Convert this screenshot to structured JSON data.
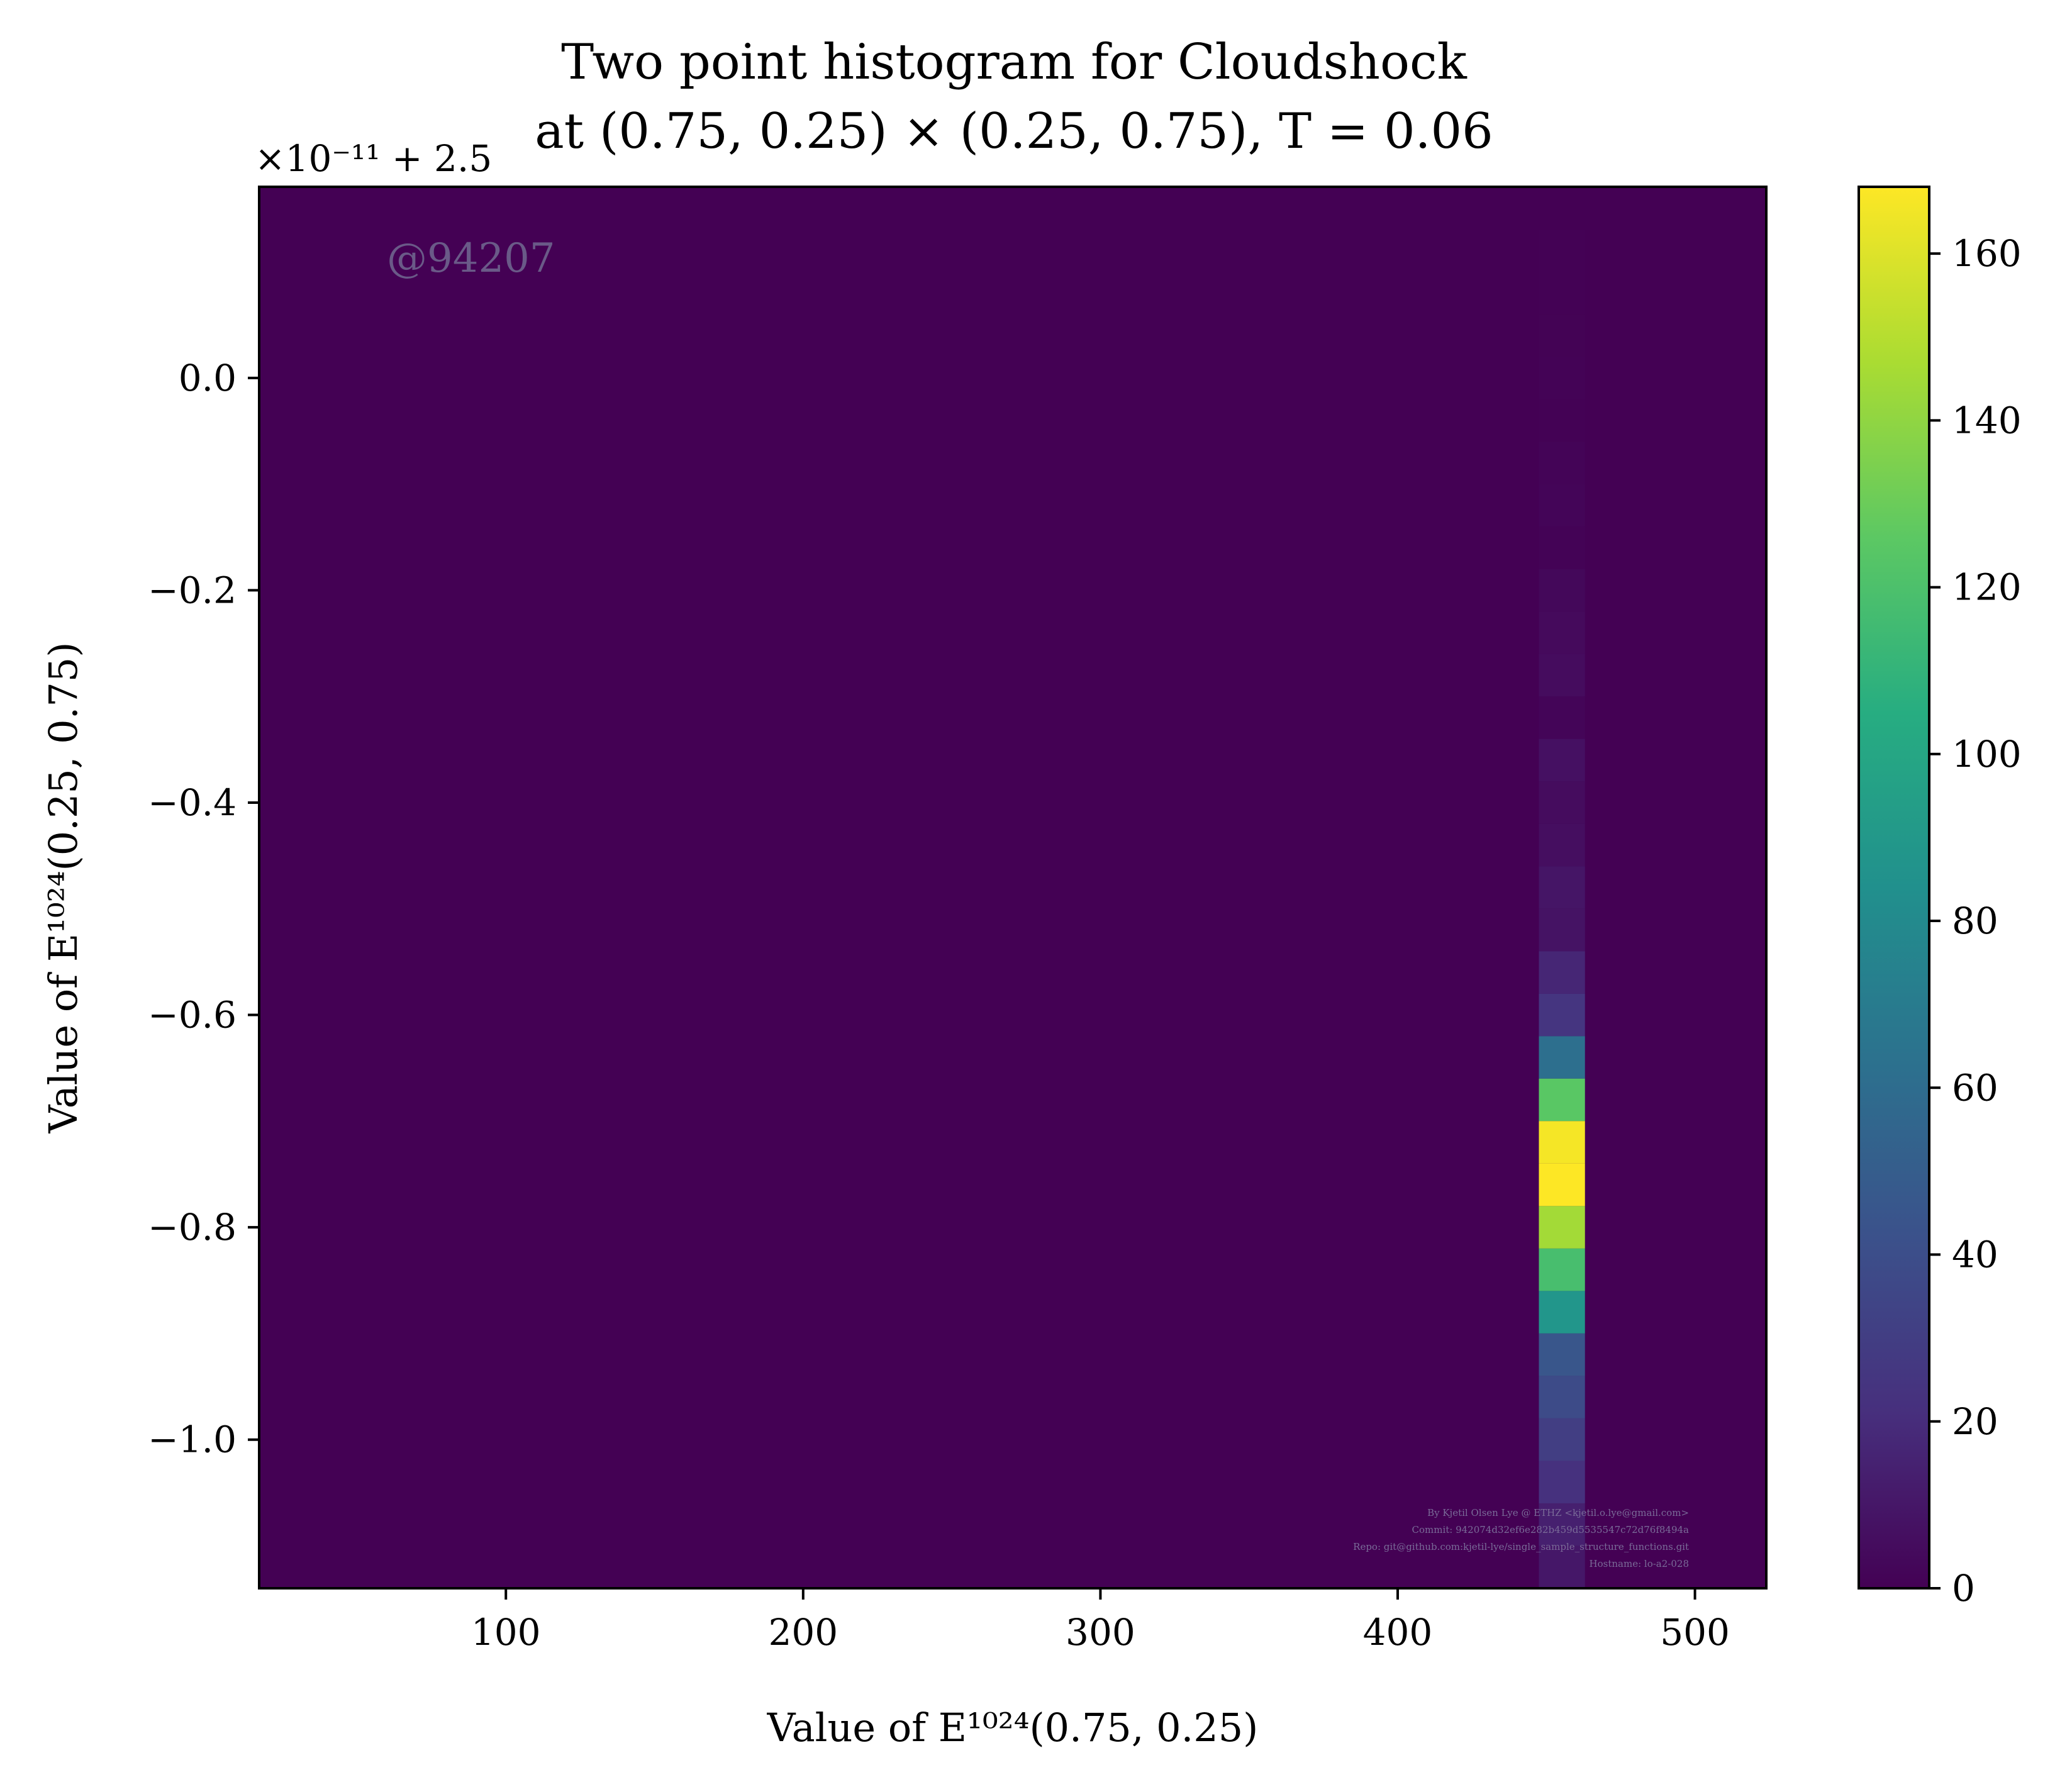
{
  "chart_data": {
    "type": "heatmap",
    "title": [
      "Two point histogram for Cloudshock",
      "at (0.75, 0.25) × (0.25, 0.75), T = 0.06"
    ],
    "xlabel": "Value of E¹⁰²⁴(0.75, 0.25)",
    "ylabel": "Value of E¹⁰²⁴(0.25, 0.75)",
    "y_offset_text": "×10⁻¹¹ + 2.5",
    "xlim": [
      17,
      524
    ],
    "ylim": [
      -1.14,
      0.18
    ],
    "x_ticks": [
      100,
      200,
      300,
      400,
      500
    ],
    "x_tick_labels": [
      "100",
      "200",
      "300",
      "400",
      "500"
    ],
    "y_ticks": [
      0.0,
      -0.2,
      -0.4,
      -0.6,
      -0.8,
      -1.0
    ],
    "y_tick_labels": [
      "0.0",
      "−0.2",
      "−0.4",
      "−0.6",
      "−0.8",
      "−1.0"
    ],
    "colorbar": {
      "colormap": "viridis",
      "range": [
        0,
        168
      ],
      "ticks": [
        0,
        20,
        40,
        60,
        80,
        100,
        120,
        140,
        160
      ],
      "tick_labels": [
        "0",
        "20",
        "40",
        "60",
        "80",
        "100",
        "120",
        "140",
        "160"
      ]
    },
    "background_value": 0,
    "column_x_range": [
      447.5,
      463
    ],
    "cells": [
      {
        "y0": 0.1,
        "y1": 0.14,
        "value": 0.4
      },
      {
        "y0": 0.06,
        "y1": 0.1,
        "value": 0.6
      },
      {
        "y0": 0.02,
        "y1": 0.06,
        "value": 0.7
      },
      {
        "y0": -0.02,
        "y1": 0.02,
        "value": 0.8
      },
      {
        "y0": -0.06,
        "y1": -0.02,
        "value": 0.6
      },
      {
        "y0": -0.1,
        "y1": -0.06,
        "value": 1.5
      },
      {
        "y0": -0.14,
        "y1": -0.1,
        "value": 2.0
      },
      {
        "y0": -0.18,
        "y1": -0.14,
        "value": 0.8
      },
      {
        "y0": -0.22,
        "y1": -0.18,
        "value": 3.0
      },
      {
        "y0": -0.26,
        "y1": -0.22,
        "value": 4.0
      },
      {
        "y0": -0.3,
        "y1": -0.26,
        "value": 5.0
      },
      {
        "y0": -0.34,
        "y1": -0.3,
        "value": 2.0
      },
      {
        "y0": -0.38,
        "y1": -0.34,
        "value": 7.0
      },
      {
        "y0": -0.42,
        "y1": -0.38,
        "value": 5.0
      },
      {
        "y0": -0.46,
        "y1": -0.42,
        "value": 6.0
      },
      {
        "y0": -0.5,
        "y1": -0.46,
        "value": 9.0
      },
      {
        "y0": -0.54,
        "y1": -0.5,
        "value": 8.0
      },
      {
        "y0": -0.58,
        "y1": -0.54,
        "value": 17.0
      },
      {
        "y0": -0.62,
        "y1": -0.58,
        "value": 25.0
      },
      {
        "y0": -0.66,
        "y1": -0.62,
        "value": 62.0
      },
      {
        "y0": -0.7,
        "y1": -0.66,
        "value": 125.0
      },
      {
        "y0": -0.74,
        "y1": -0.7,
        "value": 166.0
      },
      {
        "y0": -0.78,
        "y1": -0.74,
        "value": 168.0
      },
      {
        "y0": -0.82,
        "y1": -0.78,
        "value": 145.0
      },
      {
        "y0": -0.86,
        "y1": -0.82,
        "value": 118.0
      },
      {
        "y0": -0.9,
        "y1": -0.86,
        "value": 88.0
      },
      {
        "y0": -0.94,
        "y1": -0.9,
        "value": 45.0
      },
      {
        "y0": -0.98,
        "y1": -0.94,
        "value": 38.0
      },
      {
        "y0": -1.02,
        "y1": -0.98,
        "value": 30.0
      },
      {
        "y0": -1.06,
        "y1": -1.02,
        "value": 22.0
      },
      {
        "y0": -1.1,
        "y1": -1.06,
        "value": 14.0
      },
      {
        "y0": -1.14,
        "y1": -1.1,
        "value": 10.0
      }
    ]
  },
  "watermark": "@94207",
  "credits": [
    "By Kjetil Olsen Lye @ ETHZ <kjetil.o.lye@gmail.com>",
    "Commit: 942074d32ef6e282b459d5535547c72d76f8494a",
    "Repo: git@github.com:kjetil-lye/single_sample_structure_functions.git",
    "Hostname: lo-a2-028"
  ]
}
